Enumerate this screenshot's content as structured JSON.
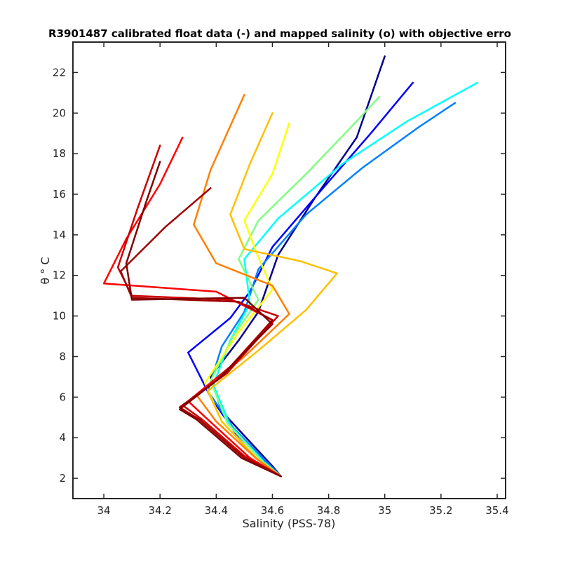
{
  "chart_data": {
    "type": "line",
    "title": "R3901487 calibrated float data (-) and mapped salinity (o) with objective erro",
    "xlabel": "Salinity (PSS-78)",
    "ylabel": "θ ° C",
    "xlim": [
      33.89,
      35.43
    ],
    "ylim": [
      1.0,
      23.5
    ],
    "xticks": [
      34,
      34.2,
      34.4,
      34.6,
      34.8,
      35,
      35.2,
      35.4
    ],
    "xtick_labels": [
      "34",
      "34.2",
      "34.4",
      "34.6",
      "34.8",
      "35",
      "35.2",
      "35.4"
    ],
    "yticks": [
      2,
      4,
      6,
      8,
      10,
      12,
      14,
      16,
      18,
      20,
      22
    ],
    "ytick_labels": [
      "2",
      "4",
      "6",
      "8",
      "10",
      "12",
      "14",
      "16",
      "18",
      "20",
      "22"
    ],
    "grid": false,
    "legend": "none",
    "colormap": "jet",
    "colormap_stops": [
      "#00008f",
      "#0000ff",
      "#0080ff",
      "#00ffff",
      "#80ff80",
      "#ffff00",
      "#ff8000",
      "#ff0000",
      "#800000"
    ],
    "series": [
      {
        "color": "#00008f",
        "x": [
          34.63,
          34.6,
          34.52,
          34.42,
          34.38,
          34.48,
          34.55,
          34.62,
          34.75,
          34.9,
          35.0
        ],
        "y": [
          2.1,
          2.6,
          3.8,
          5.3,
          7.0,
          8.8,
          10.2,
          13.0,
          15.8,
          18.8,
          22.8
        ]
      },
      {
        "color": "#0000ff",
        "x": [
          34.63,
          34.58,
          34.47,
          34.38,
          34.3,
          34.45,
          34.52,
          34.6,
          34.78,
          34.95,
          35.1
        ],
        "y": [
          2.1,
          2.7,
          4.2,
          6.0,
          8.2,
          9.9,
          11.2,
          13.4,
          16.3,
          19.0,
          21.5
        ]
      },
      {
        "color": "#0080ff",
        "x": [
          34.63,
          34.58,
          34.46,
          34.37,
          34.42,
          34.5,
          34.55,
          34.72,
          34.92,
          35.12,
          35.25
        ],
        "y": [
          2.1,
          2.8,
          4.5,
          6.3,
          8.5,
          10.2,
          12.3,
          15.0,
          17.3,
          19.3,
          20.5
        ]
      },
      {
        "color": "#00ffff",
        "x": [
          34.63,
          34.57,
          34.45,
          34.39,
          34.45,
          34.52,
          34.5,
          34.62,
          34.85,
          35.08,
          35.33
        ],
        "y": [
          2.1,
          2.8,
          4.6,
          6.6,
          8.8,
          10.6,
          12.8,
          14.8,
          17.5,
          19.6,
          21.5
        ]
      },
      {
        "color": "#80ff80",
        "x": [
          34.63,
          34.56,
          34.44,
          34.38,
          34.46,
          34.55,
          34.48,
          34.55,
          34.72,
          34.9,
          34.98
        ],
        "y": [
          2.1,
          2.9,
          4.7,
          6.8,
          9.0,
          10.8,
          12.8,
          14.7,
          17.0,
          19.6,
          20.8
        ]
      },
      {
        "color": "#ffff00",
        "x": [
          34.63,
          34.55,
          34.42,
          34.36,
          34.48,
          34.6,
          34.55,
          34.5,
          34.6,
          34.66
        ],
        "y": [
          2.1,
          2.9,
          4.8,
          6.7,
          9.2,
          11.3,
          12.9,
          14.7,
          17.0,
          19.5
        ]
      },
      {
        "color": "#ffc000",
        "x": [
          34.63,
          34.55,
          34.42,
          34.37,
          34.55,
          34.72,
          34.83,
          34.7,
          34.5,
          34.45,
          34.52,
          34.6
        ],
        "y": [
          2.1,
          2.9,
          4.8,
          6.3,
          8.3,
          10.3,
          12.1,
          12.7,
          13.3,
          15.0,
          17.5,
          20.0
        ]
      },
      {
        "color": "#ff8000",
        "x": [
          34.63,
          34.54,
          34.4,
          34.33,
          34.5,
          34.66,
          34.6,
          34.4,
          34.32,
          34.38,
          34.5
        ],
        "y": [
          2.1,
          3.0,
          4.8,
          6.1,
          8.0,
          10.1,
          11.5,
          12.6,
          14.5,
          17.2,
          20.9
        ]
      },
      {
        "color": "#ff0000",
        "x": [
          34.63,
          34.52,
          34.37,
          34.3,
          34.45,
          34.6,
          34.4,
          34.0,
          34.08,
          34.2,
          34.28
        ],
        "y": [
          2.1,
          3.0,
          4.9,
          5.8,
          7.5,
          9.8,
          11.2,
          11.6,
          13.8,
          16.5,
          18.8
        ]
      },
      {
        "color": "#cc0000",
        "x": [
          34.63,
          34.5,
          34.35,
          34.28,
          34.44,
          34.62,
          34.45,
          34.1,
          34.05,
          34.12,
          34.2
        ],
        "y": [
          2.1,
          3.1,
          4.9,
          5.6,
          7.2,
          10.0,
          10.8,
          11.0,
          12.4,
          15.3,
          18.4
        ]
      },
      {
        "color": "#a00000",
        "x": [
          34.63,
          34.5,
          34.34,
          34.27,
          34.42,
          34.6,
          34.48,
          34.1,
          34.06,
          34.22,
          34.38
        ],
        "y": [
          2.1,
          3.0,
          4.9,
          5.5,
          7.0,
          9.8,
          10.7,
          10.9,
          12.2,
          14.4,
          16.3
        ]
      },
      {
        "color": "#800000",
        "x": [
          34.63,
          34.49,
          34.33,
          34.27,
          34.4,
          34.6,
          34.5,
          34.1,
          34.08,
          34.15,
          34.2
        ],
        "y": [
          2.1,
          3.0,
          4.9,
          5.4,
          6.8,
          9.6,
          10.9,
          10.8,
          12.6,
          15.6,
          17.6
        ]
      }
    ]
  }
}
